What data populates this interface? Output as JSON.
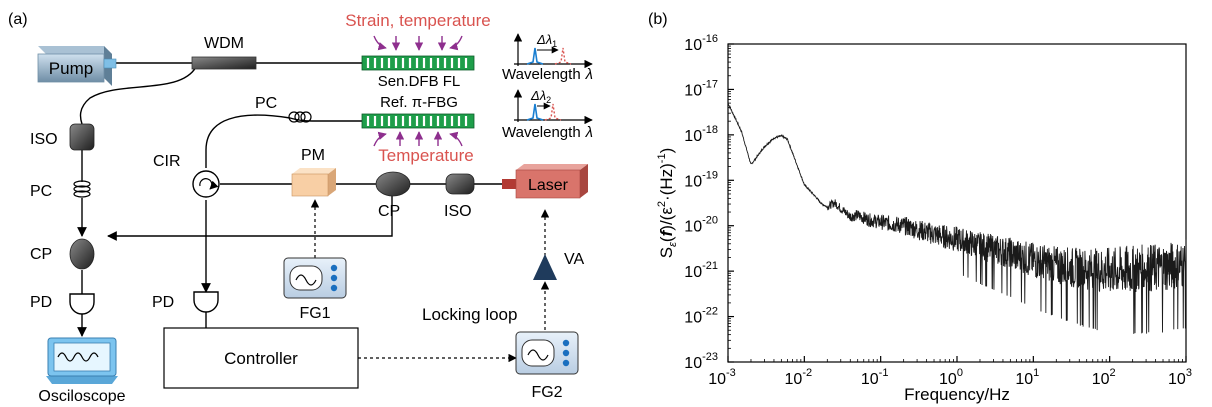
{
  "panel_a": {
    "label": "(a)",
    "components": {
      "pump": "Pump",
      "wdm": "WDM",
      "strain_temp": "Strain, temperature",
      "sensor": "Sen.DFB FL",
      "pc_top": "PC",
      "ref": "Ref. π-FBG",
      "temperature": "Temperature",
      "iso_left": "ISO",
      "pc_left": "PC",
      "cir": "CIR",
      "pm": "PM",
      "cp_mid": "CP",
      "iso_mid": "ISO",
      "laser": "Laser",
      "cp_left": "CP",
      "pd_left": "PD",
      "pd_mid": "PD",
      "fg1": "FG1",
      "va": "VA",
      "locking_loop": "Locking loop",
      "controller": "Controller",
      "fg2": "FG2",
      "oscilloscope": "Osciloscope"
    },
    "spectra": [
      {
        "xlabel": "Wavelength",
        "xsym": "λ",
        "delta": "Δλ",
        "sub": "1"
      },
      {
        "xlabel": "Wavelength",
        "xsym": "λ",
        "delta": "Δλ",
        "sub": "2"
      }
    ],
    "colors": {
      "accent_red": "#d9534f",
      "arrow_purple": "#8e2f8e",
      "grating_green": "#1e9e4a",
      "dark_triangle": "#1f3b5c",
      "pm_fill": "#f8cfa5",
      "laser_fill": "#d9746b"
    }
  },
  "panel_b": {
    "label": "(b)",
    "ylabel_parts": {
      "s": "S",
      "sub": "ε",
      "f": "f",
      "tail": "/(ε",
      "sup2": "2",
      "mid": "·(Hz)",
      "sup": "-1",
      "end": ")"
    },
    "xlabel": "Frequency/Hz",
    "xticks": [
      {
        "base": "10",
        "exp": "-3"
      },
      {
        "base": "10",
        "exp": "-2"
      },
      {
        "base": "10",
        "exp": "-1"
      },
      {
        "base": "10",
        "exp": "0"
      },
      {
        "base": "10",
        "exp": "1"
      },
      {
        "base": "10",
        "exp": "2"
      },
      {
        "base": "10",
        "exp": "3"
      }
    ],
    "yticks": [
      {
        "base": "10",
        "exp": "-16"
      },
      {
        "base": "10",
        "exp": "-17"
      },
      {
        "base": "10",
        "exp": "-18"
      },
      {
        "base": "10",
        "exp": "-19"
      },
      {
        "base": "10",
        "exp": "-20"
      },
      {
        "base": "10",
        "exp": "-21"
      },
      {
        "base": "10",
        "exp": "-22"
      },
      {
        "base": "10",
        "exp": "-23"
      }
    ]
  },
  "chart_data": {
    "type": "line",
    "title": "",
    "xlabel": "Frequency/Hz",
    "ylabel": "Sε(f)/(ε²·(Hz)⁻¹)",
    "x_scale": "log",
    "y_scale": "log",
    "xlim": [
      0.001,
      1000
    ],
    "ylim": [
      1e-23,
      1e-16
    ],
    "grid": false,
    "series": [
      {
        "x": [
          0.001,
          0.0015,
          0.002,
          0.003,
          0.004,
          0.005,
          0.006,
          0.008,
          0.01,
          0.013,
          0.017,
          0.02,
          0.025,
          0.03,
          0.04,
          0.05,
          0.07,
          0.1,
          0.2,
          0.5,
          1,
          2,
          5,
          10,
          20,
          50,
          100,
          200,
          500,
          1000
        ],
        "y": [
          5e-18,
          1.2e-18,
          2.2e-19,
          5.5e-19,
          8.5e-19,
          9.5e-19,
          8e-19,
          2.2e-19,
          8e-20,
          5e-20,
          3e-20,
          2.6e-20,
          3.2e-20,
          2.4e-20,
          1.6e-20,
          1.7e-20,
          1.35e-20,
          1.2e-20,
          1e-20,
          6.5e-21,
          5e-21,
          3.5e-21,
          2.4e-21,
          1.7e-21,
          1.3e-21,
          1.05e-21,
          1e-21,
          1.05e-21,
          1.2e-21,
          1.4e-21
        ]
      }
    ]
  }
}
